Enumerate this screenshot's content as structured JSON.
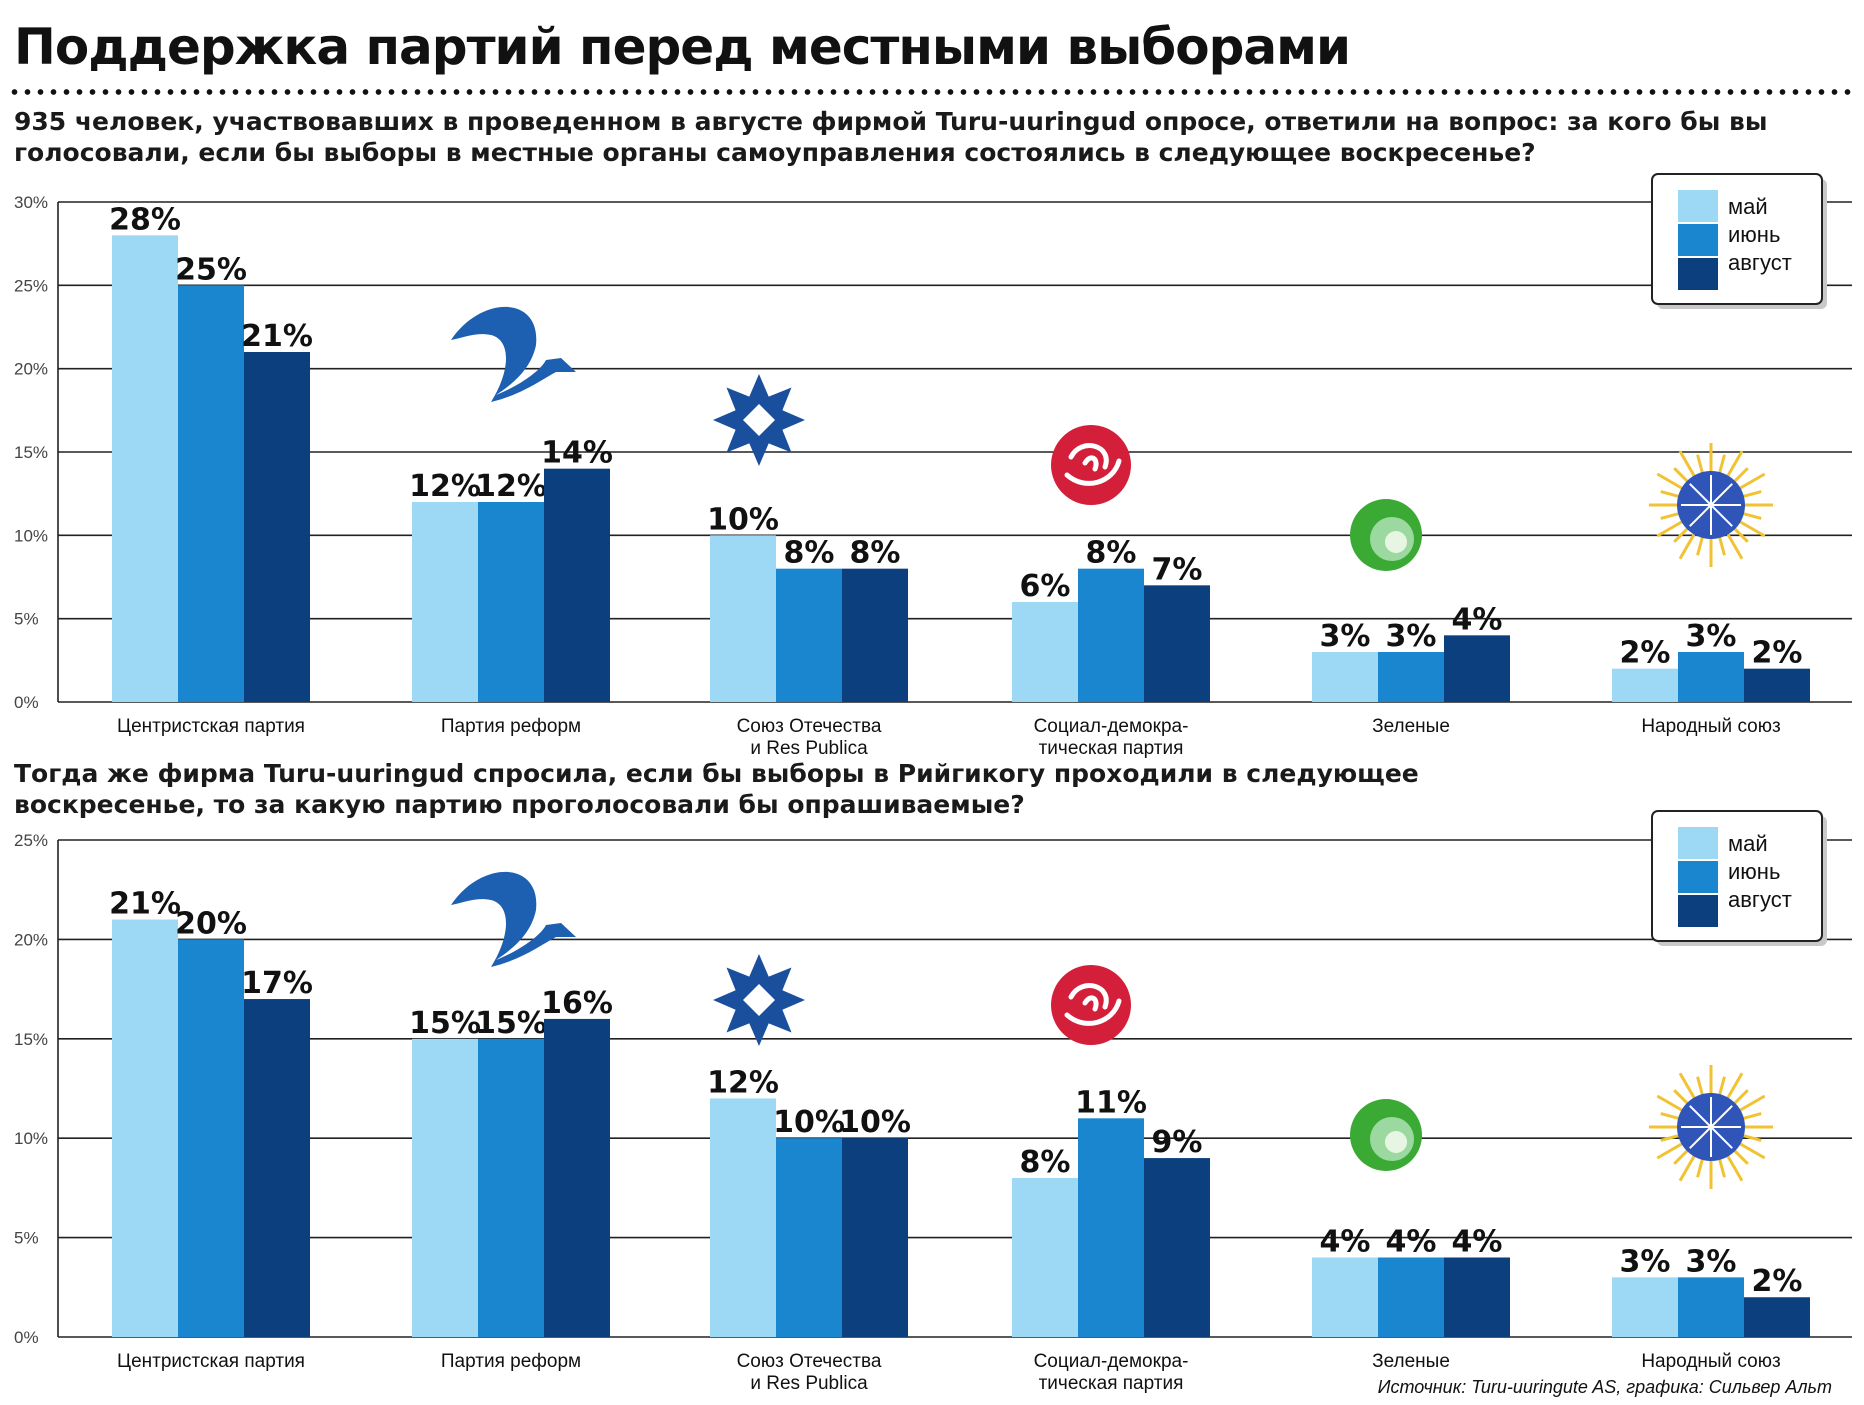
{
  "title": "Поддержка партий перед местными выборами",
  "question_1": "935 человек, участвовавших в проведенном в августе фирмой Turu-uuringud опросе, ответили на вопрос: за кого бы вы голосовали, если бы выборы в местные органы самоуправления состоялись в следующее воскресенье?",
  "question_2": "Тогда же фирма Turu-uuringud спросила, если бы выборы в Рийгикогу проходили в следующее воскресенье, то за какую партию проголосовали бы опрашиваемые?",
  "source": "Источник: Turu-uuringute AS, графика: Сильвер Альт",
  "colors": {
    "may": "#9dd8f5",
    "june": "#1a86d0",
    "august": "#0b3f7e"
  },
  "legend": [
    "май",
    "июнь",
    "август"
  ],
  "chart_data": [
    {
      "type": "bar",
      "ylim": [
        0,
        30
      ],
      "yticks": [
        "0%",
        "5%",
        "10%",
        "15%",
        "20%",
        "25%",
        "30%"
      ],
      "categories": [
        [
          "Центристская партия"
        ],
        [
          "Партия реформ"
        ],
        [
          "Союз Отечества",
          "и Res Publica"
        ],
        [
          "Социал-демокра-",
          "тическая партия"
        ],
        [
          "Зеленые"
        ],
        [
          "Народный союз"
        ]
      ],
      "series": [
        {
          "name": "май",
          "values": [
            28,
            12,
            10,
            6,
            3,
            2
          ],
          "labels": [
            "28%",
            "12%",
            "10%",
            "6%",
            "3%",
            "2%"
          ]
        },
        {
          "name": "июнь",
          "values": [
            25,
            12,
            8,
            8,
            3,
            3
          ],
          "labels": [
            "25%",
            "12%",
            "8%",
            "8%",
            "3%",
            "3%"
          ]
        },
        {
          "name": "август",
          "values": [
            21,
            14,
            8,
            7,
            4,
            2
          ],
          "labels": [
            "21%",
            "14%",
            "8%",
            "7%",
            "4%",
            "2%"
          ]
        }
      ],
      "legend_position": "top-right",
      "grid": true
    },
    {
      "type": "bar",
      "ylim": [
        0,
        25
      ],
      "yticks": [
        "0%",
        "5%",
        "10%",
        "15%",
        "20%",
        "25%"
      ],
      "categories": [
        [
          "Центристская партия"
        ],
        [
          "Партия реформ"
        ],
        [
          "Союз Отечества",
          "и Res Publica"
        ],
        [
          "Социал-демокра-",
          "тическая партия"
        ],
        [
          "Зеленые"
        ],
        [
          "Народный союз"
        ]
      ],
      "series": [
        {
          "name": "май",
          "values": [
            21,
            15,
            12,
            8,
            4,
            3
          ],
          "labels": [
            "21%",
            "15%",
            "12%",
            "8%",
            "4%",
            "3%"
          ]
        },
        {
          "name": "июнь",
          "values": [
            20,
            15,
            10,
            11,
            4,
            3
          ],
          "labels": [
            "20%",
            "15%",
            "10%",
            "11%",
            "4%",
            "3%"
          ]
        },
        {
          "name": "август",
          "values": [
            17,
            16,
            10,
            9,
            4,
            2
          ],
          "labels": [
            "17%",
            "16%",
            "10%",
            "9%",
            "4%",
            "2%"
          ]
        }
      ],
      "legend_position": "top-right",
      "grid": true
    }
  ],
  "party_logos": [
    "center-party-logo",
    "reform-party-logo",
    "irl-logo",
    "social-democrats-logo",
    "greens-logo",
    "peoples-union-logo"
  ]
}
